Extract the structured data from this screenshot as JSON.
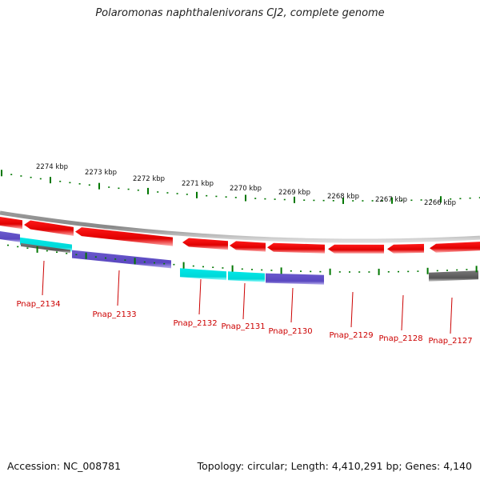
{
  "header": {
    "title": "Polaromonas naphthalenivorans CJ2, complete genome"
  },
  "footer": {
    "accession": "Accession: NC_008781",
    "summary": "Topology: circular; Length: 4,410,291 bp; Genes: 4,140"
  },
  "colors": {
    "forward": "#ff0000",
    "reverse_purple": "#6655cc",
    "reverse_cyan": "#00e5e5",
    "other": "#666666",
    "backbone": "#888888",
    "ticks": "#007700",
    "label": "#cc0000"
  },
  "scale_labels": [
    "2274 kbp",
    "2273 kbp",
    "2272 kbp",
    "2271 kbp",
    "2270 kbp",
    "2269 kbp",
    "2268 kbp",
    "2267 kbp",
    "2266 kbp"
  ],
  "genes": [
    {
      "name": "Pnap_2134",
      "kind": "reverse_cyan"
    },
    {
      "name": "Pnap_2133",
      "kind": "reverse_purple"
    },
    {
      "name": "Pnap_2132",
      "kind": "reverse_cyan"
    },
    {
      "name": "Pnap_2131",
      "kind": "reverse_cyan"
    },
    {
      "name": "Pnap_2130",
      "kind": "reverse_purple"
    },
    {
      "name": "Pnap_2129",
      "kind": "forward"
    },
    {
      "name": "Pnap_2128",
      "kind": "forward"
    },
    {
      "name": "Pnap_2127",
      "kind": "other"
    }
  ]
}
